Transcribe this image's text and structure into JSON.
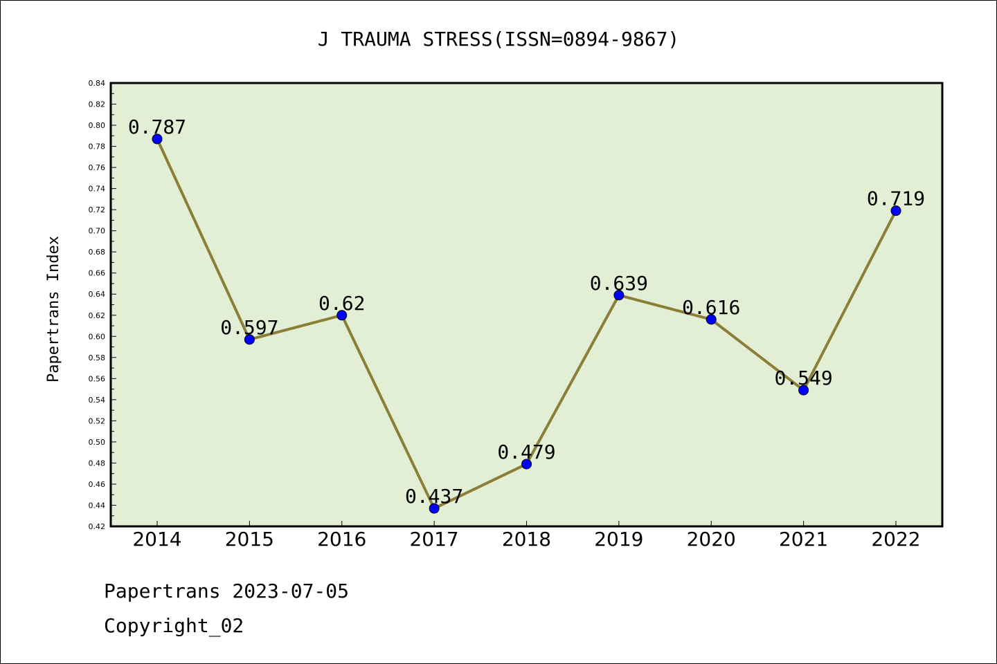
{
  "chart_data": {
    "type": "line",
    "title": "J TRAUMA STRESS(ISSN=0894-9867)",
    "xlabel": "",
    "ylabel": "Papertrans Index",
    "categories": [
      "2014",
      "2015",
      "2016",
      "2017",
      "2018",
      "2019",
      "2020",
      "2021",
      "2022"
    ],
    "values": [
      0.787,
      0.597,
      0.62,
      0.437,
      0.479,
      0.639,
      0.616,
      0.549,
      0.719
    ],
    "data_labels": [
      "0.787",
      "0.597",
      "0.62",
      "0.437",
      "0.479",
      "0.639",
      "0.616",
      "0.549",
      "0.719"
    ],
    "ylim": [
      0.42,
      0.84
    ],
    "yticks": [
      "0.42",
      "0.44",
      "0.46",
      "0.48",
      "0.50",
      "0.52",
      "0.54",
      "0.56",
      "0.58",
      "0.60",
      "0.62",
      "0.64",
      "0.66",
      "0.68",
      "0.70",
      "0.72",
      "0.74",
      "0.76",
      "0.78",
      "0.80",
      "0.82",
      "0.84"
    ],
    "grid": false,
    "colors": {
      "plot_bg": "#e2efd4",
      "line": "#8b7e38",
      "marker": "#0000ff"
    }
  },
  "footer": {
    "line1": "Papertrans 2023-07-05",
    "line2": "Copyright_02"
  }
}
